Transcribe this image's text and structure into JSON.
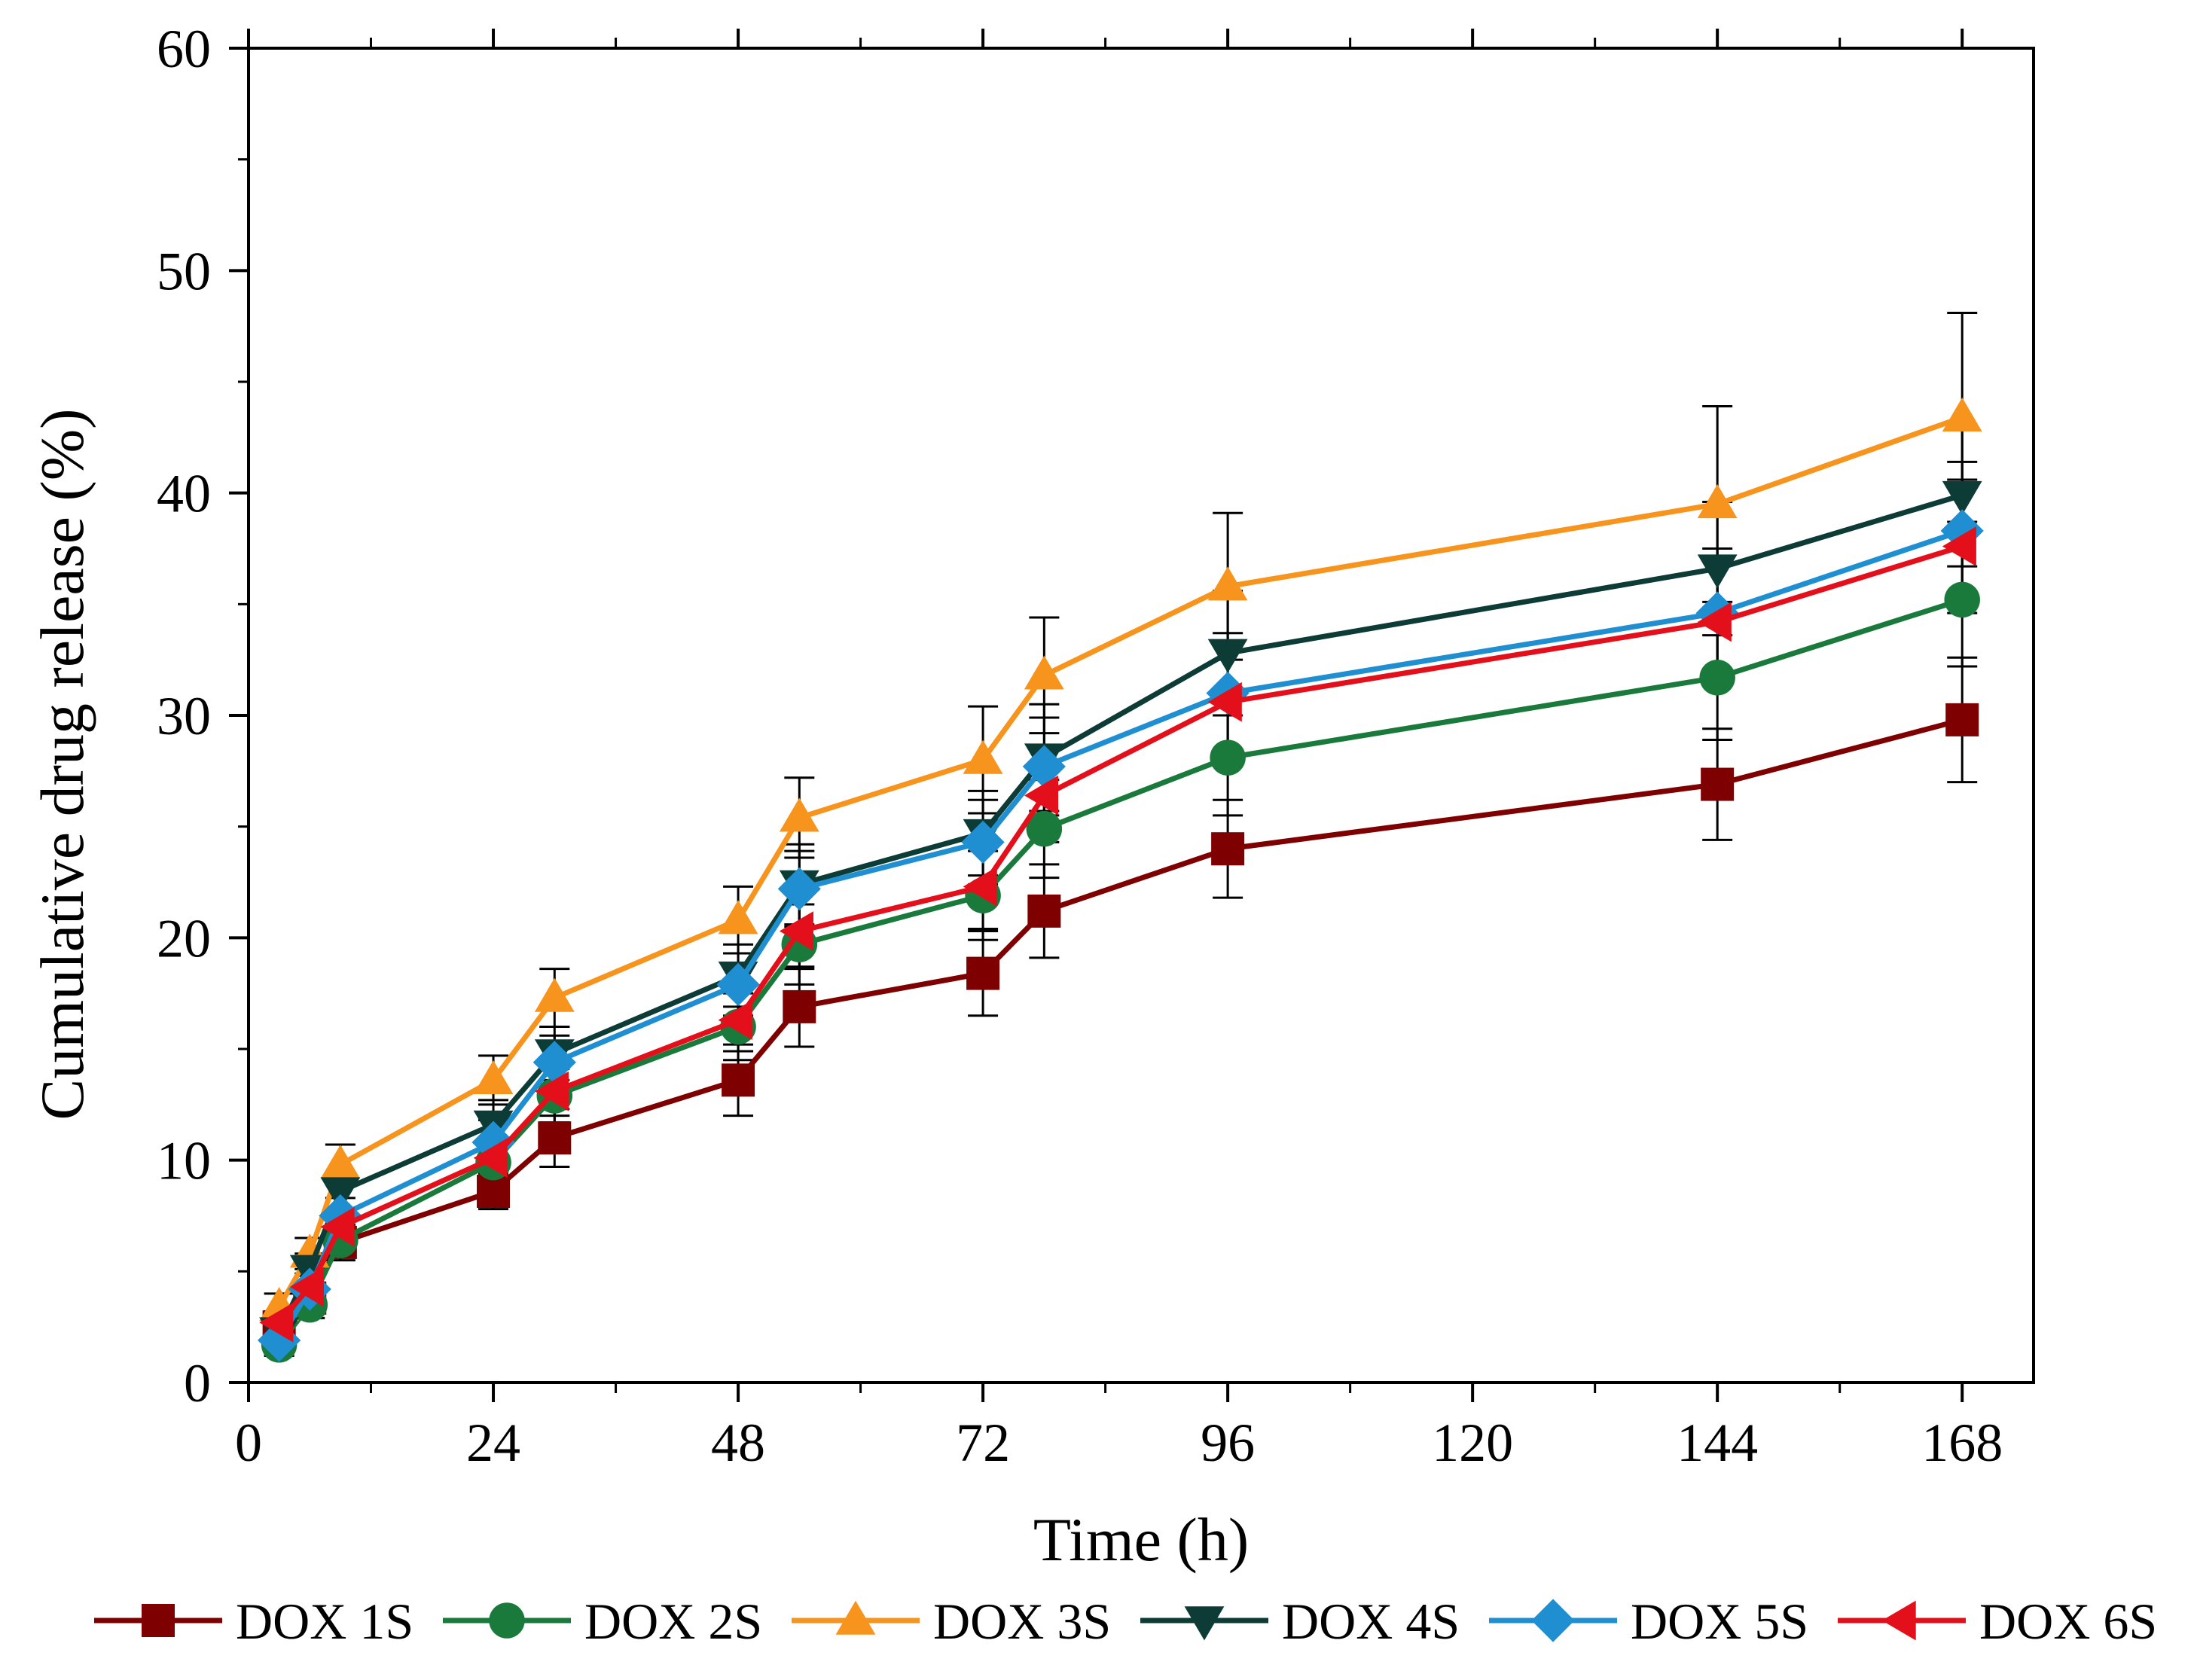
{
  "chart_data": {
    "type": "line",
    "title": "",
    "xlabel": "Time (h)",
    "ylabel": "Cumulative drug release (%)",
    "xlim": [
      0,
      175
    ],
    "ylim": [
      0,
      60
    ],
    "x_ticks": [
      0,
      24,
      48,
      72,
      96,
      120,
      144,
      168
    ],
    "y_ticks": [
      0,
      10,
      20,
      30,
      40,
      50,
      60
    ],
    "x_tick_labels": [
      "0",
      "24",
      "48",
      "72",
      "96",
      "120",
      "144",
      "168"
    ],
    "y_tick_labels": [
      "0",
      "10",
      "20",
      "30",
      "40",
      "50",
      "60"
    ],
    "grid": false,
    "legend_position": "bottom",
    "x": [
      3,
      6,
      9,
      24,
      30,
      48,
      54,
      72,
      78,
      96,
      144,
      168
    ],
    "series": [
      {
        "name": "DOX 1S",
        "color": "#7f0000",
        "marker": "square",
        "values": [
          2.5,
          3.8,
          6.3,
          8.6,
          11.0,
          13.6,
          16.9,
          18.4,
          21.2,
          24.0,
          26.9,
          29.8
        ],
        "errors": [
          0.6,
          0.7,
          0.8,
          0.8,
          1.3,
          1.6,
          1.8,
          1.9,
          2.1,
          2.2,
          2.5,
          2.8
        ]
      },
      {
        "name": "DOX 2S",
        "color": "#1a7a3c",
        "marker": "circle",
        "values": [
          1.7,
          3.5,
          6.4,
          9.9,
          12.9,
          16.0,
          19.7,
          21.9,
          24.9,
          28.1,
          31.7,
          35.2
        ],
        "errors": [
          0.5,
          0.6,
          0.7,
          0.9,
          1.2,
          1.5,
          1.8,
          2.0,
          2.2,
          2.6,
          2.8,
          3.0
        ]
      },
      {
        "name": "DOX 3S",
        "color": "#f7941d",
        "marker": "triangle-up",
        "values": [
          3.4,
          5.8,
          9.8,
          13.6,
          17.3,
          20.8,
          25.4,
          28.0,
          31.8,
          35.8,
          39.5,
          43.4
        ],
        "errors": [
          0.6,
          0.7,
          0.9,
          1.1,
          1.3,
          1.5,
          1.8,
          2.4,
          2.6,
          3.3,
          4.4,
          4.7
        ]
      },
      {
        "name": "DOX 4S",
        "color": "#0d3b36",
        "marker": "triangle-down",
        "values": [
          2.3,
          5.1,
          8.6,
          11.6,
          14.8,
          18.3,
          22.4,
          24.7,
          28.1,
          32.8,
          36.6,
          39.9
        ],
        "errors": [
          0.5,
          0.7,
          0.8,
          1.1,
          1.2,
          1.4,
          1.8,
          1.9,
          2.4,
          2.8,
          3.0,
          3.2
        ]
      },
      {
        "name": "DOX 5S",
        "color": "#1f8fd1",
        "marker": "diamond",
        "values": [
          1.9,
          4.2,
          7.5,
          10.8,
          14.4,
          17.9,
          22.2,
          24.3,
          27.7,
          31.0,
          34.6,
          38.3
        ],
        "errors": [
          0.5,
          0.6,
          0.8,
          1.0,
          1.2,
          1.4,
          1.7,
          1.9,
          2.2,
          2.7,
          2.9,
          3.1
        ]
      },
      {
        "name": "DOX 6S",
        "color": "#e3101b",
        "marker": "triangle-left",
        "values": [
          2.7,
          4.3,
          7.0,
          10.1,
          13.1,
          16.3,
          20.3,
          22.3,
          26.4,
          30.6,
          34.2,
          37.6
        ],
        "errors": [
          0.5,
          0.6,
          0.7,
          0.9,
          1.1,
          1.4,
          1.7,
          1.9,
          2.1,
          2.6,
          2.8,
          3.0
        ]
      }
    ]
  }
}
